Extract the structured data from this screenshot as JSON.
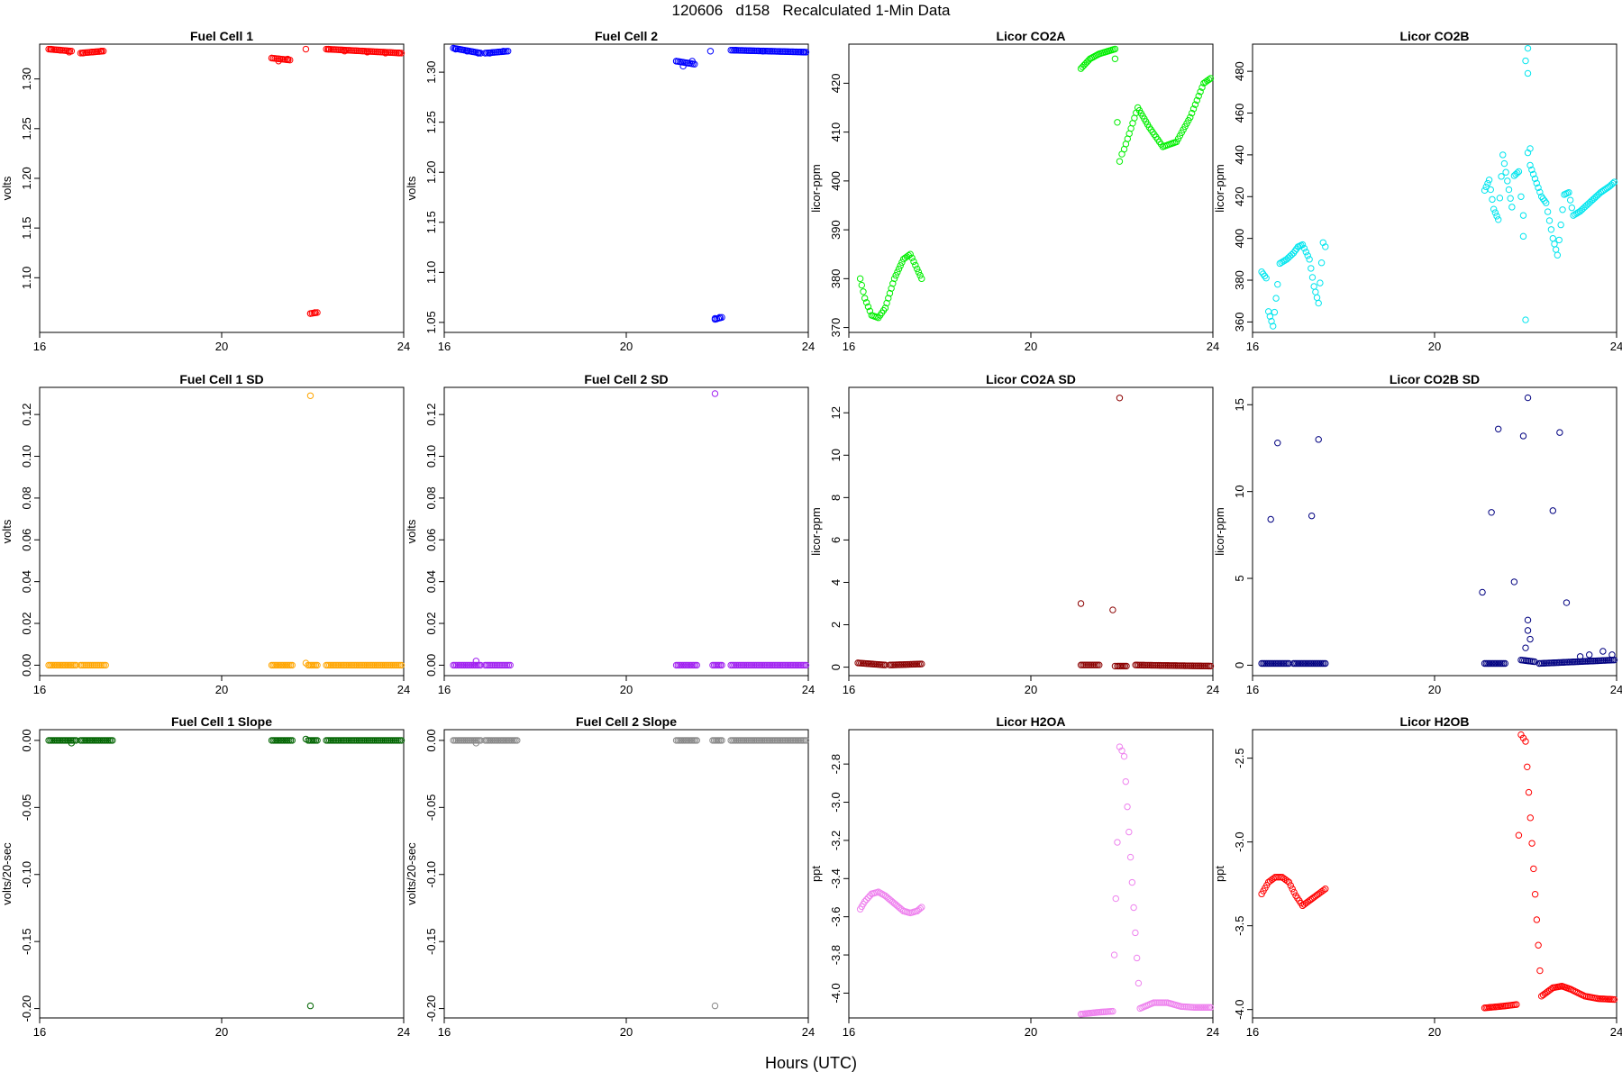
{
  "figure": {
    "title": "120606   d158   Recalculated 1-Min Data",
    "xlabel": "Hours (UTC)"
  },
  "chart_data": [
    {
      "type": "scatter",
      "title": "Fuel Cell 1",
      "ylabel": "volts",
      "color": "#ff0000",
      "xlim": [
        16,
        24
      ],
      "ylim": [
        1.045,
        1.335
      ],
      "xticks": [
        "16",
        "20",
        "24"
      ],
      "yticks": [
        1.1,
        1.15,
        1.2,
        1.25,
        1.3
      ],
      "yticklabels": [
        "1.10",
        "1.15",
        "1.20",
        "1.25",
        "1.30"
      ],
      "points": [
        [
          16.25,
          1.33
        ],
        [
          16.45,
          1.329
        ],
        [
          16.65,
          1.327
        ],
        [
          16.95,
          1.326
        ],
        [
          17.15,
          1.327
        ],
        [
          17.35,
          1.328
        ],
        [
          21.1,
          1.321
        ],
        [
          21.25,
          1.318
        ],
        [
          21.45,
          1.32
        ],
        [
          21.85,
          1.33
        ],
        [
          21.95,
          1.064
        ],
        [
          22.05,
          1.065
        ],
        [
          22.35,
          1.33
        ],
        [
          22.7,
          1.328
        ],
        [
          23.2,
          1.327
        ],
        [
          23.6,
          1.326
        ],
        [
          23.9,
          1.326
        ]
      ],
      "segments": [
        [
          16.2,
          16.7,
          1.33,
          1.328
        ],
        [
          16.9,
          17.4,
          1.326,
          1.328
        ],
        [
          21.1,
          21.5,
          1.321,
          1.319
        ],
        [
          21.95,
          22.1,
          1.064,
          1.065
        ],
        [
          22.3,
          23.95,
          1.33,
          1.326
        ]
      ]
    },
    {
      "type": "scatter",
      "title": "Fuel Cell 2",
      "ylabel": "volts",
      "color": "#0000ff",
      "xlim": [
        16,
        24
      ],
      "ylim": [
        1.04,
        1.328
      ],
      "xticks": [
        "16",
        "20",
        "24"
      ],
      "yticks": [
        1.05,
        1.1,
        1.15,
        1.2,
        1.25,
        1.3
      ],
      "yticklabels": [
        "1.05",
        "1.10",
        "1.15",
        "1.20",
        "1.25",
        "1.30"
      ],
      "points": [
        [
          16.25,
          1.323
        ],
        [
          16.5,
          1.321
        ],
        [
          16.75,
          1.319
        ],
        [
          17.0,
          1.319
        ],
        [
          17.3,
          1.321
        ],
        [
          21.1,
          1.311
        ],
        [
          21.25,
          1.306
        ],
        [
          21.45,
          1.311
        ],
        [
          21.85,
          1.321
        ],
        [
          21.95,
          1.054
        ],
        [
          22.05,
          1.055
        ],
        [
          22.4,
          1.322
        ],
        [
          23.0,
          1.321
        ],
        [
          23.9,
          1.32
        ]
      ],
      "segments": [
        [
          16.2,
          16.8,
          1.324,
          1.319
        ],
        [
          16.9,
          17.4,
          1.319,
          1.321
        ],
        [
          21.1,
          21.5,
          1.311,
          1.308
        ],
        [
          21.95,
          22.1,
          1.053,
          1.055
        ],
        [
          22.3,
          23.95,
          1.322,
          1.32
        ]
      ]
    },
    {
      "type": "scatter",
      "title": "Licor CO2A",
      "ylabel": "licor-ppm",
      "color": "#00ee00",
      "xlim": [
        16,
        24
      ],
      "ylim": [
        369,
        428
      ],
      "xticks": [
        "16",
        "20",
        "24"
      ],
      "yticks": [
        370,
        380,
        390,
        400,
        410,
        420
      ],
      "yticklabels": [
        "370",
        "380",
        "390",
        "400",
        "410",
        "420"
      ],
      "points": [
        [
          16.25,
          380
        ],
        [
          16.35,
          376
        ],
        [
          16.5,
          372.5
        ],
        [
          16.65,
          372
        ],
        [
          16.8,
          374
        ],
        [
          17.0,
          380
        ],
        [
          17.2,
          384
        ],
        [
          17.35,
          385
        ],
        [
          17.5,
          382
        ],
        [
          17.6,
          380
        ],
        [
          21.1,
          423
        ],
        [
          21.3,
          425
        ],
        [
          21.5,
          426
        ],
        [
          21.85,
          427
        ],
        [
          21.85,
          425
        ],
        [
          21.9,
          412
        ],
        [
          21.95,
          404
        ],
        [
          22.0,
          405.5
        ],
        [
          22.05,
          406.5
        ],
        [
          22.35,
          415
        ],
        [
          22.6,
          411
        ],
        [
          22.9,
          407
        ],
        [
          23.2,
          408
        ],
        [
          23.5,
          413
        ],
        [
          23.8,
          420
        ],
        [
          23.95,
          421
        ]
      ]
    },
    {
      "type": "scatter",
      "title": "Licor CO2B",
      "ylabel": "licor-ppm",
      "color": "#00e5ee",
      "xlim": [
        16,
        24
      ],
      "ylim": [
        355,
        493
      ],
      "xticks": [
        "16",
        "20",
        "24"
      ],
      "yticks": [
        360,
        380,
        400,
        420,
        440,
        460,
        480
      ],
      "yticklabels": [
        "360",
        "380",
        "400",
        "420",
        "440",
        "460",
        "480"
      ],
      "points": [
        [
          16.2,
          384
        ],
        [
          16.3,
          381
        ],
        [
          16.35,
          365
        ],
        [
          16.45,
          358
        ],
        [
          16.55,
          378
        ],
        [
          16.6,
          388
        ],
        [
          16.75,
          390
        ],
        [
          16.9,
          393
        ],
        [
          17.0,
          396
        ],
        [
          17.1,
          397
        ],
        [
          17.25,
          390
        ],
        [
          17.35,
          377
        ],
        [
          17.45,
          369
        ],
        [
          17.55,
          398
        ],
        [
          17.6,
          396
        ],
        [
          21.1,
          423
        ],
        [
          21.2,
          428
        ],
        [
          21.3,
          414
        ],
        [
          21.4,
          409
        ],
        [
          21.5,
          440
        ],
        [
          21.7,
          415
        ],
        [
          21.75,
          430
        ],
        [
          21.85,
          432
        ],
        [
          21.9,
          420
        ],
        [
          21.95,
          411
        ],
        [
          21.95,
          401
        ],
        [
          22.0,
          361
        ],
        [
          22.0,
          485
        ],
        [
          22.05,
          479
        ],
        [
          22.05,
          441
        ],
        [
          22.1,
          443
        ],
        [
          22.05,
          491
        ],
        [
          22.1,
          435
        ],
        [
          22.35,
          420
        ],
        [
          22.45,
          417
        ],
        [
          22.6,
          400
        ],
        [
          22.7,
          392
        ],
        [
          22.85,
          421
        ],
        [
          22.95,
          422
        ],
        [
          23.05,
          411
        ],
        [
          23.2,
          413
        ],
        [
          23.45,
          418
        ],
        [
          23.65,
          422
        ],
        [
          23.85,
          425
        ],
        [
          23.95,
          427
        ]
      ]
    },
    {
      "type": "scatter",
      "title": "Fuel Cell 1 SD",
      "ylabel": "volts",
      "color": "#ffa500",
      "xlim": [
        16,
        24
      ],
      "ylim": [
        -0.005,
        0.133
      ],
      "xticks": [
        "16",
        "20",
        "24"
      ],
      "yticks": [
        0.0,
        0.02,
        0.04,
        0.06,
        0.08,
        0.1,
        0.12
      ],
      "yticklabels": [
        "0.00",
        "0.02",
        "0.04",
        "0.06",
        "0.08",
        "0.10",
        "0.12"
      ],
      "points": [
        [
          21.95,
          0.129
        ],
        [
          21.85,
          0.001
        ]
      ],
      "segments": [
        [
          16.2,
          16.8,
          0.0,
          0.0
        ],
        [
          16.9,
          17.45,
          0.0,
          0.0
        ],
        [
          21.1,
          21.55,
          0.0,
          0.0
        ],
        [
          21.9,
          22.1,
          0.0,
          0.0
        ],
        [
          22.3,
          23.95,
          0.0,
          0.0
        ]
      ]
    },
    {
      "type": "scatter",
      "title": "Fuel Cell 2 SD",
      "ylabel": "volts",
      "color": "#a020f0",
      "xlim": [
        16,
        24
      ],
      "ylim": [
        -0.005,
        0.133
      ],
      "xticks": [
        "16",
        "20",
        "24"
      ],
      "yticks": [
        0.0,
        0.02,
        0.04,
        0.06,
        0.08,
        0.1,
        0.12
      ],
      "yticklabels": [
        "0.00",
        "0.02",
        "0.04",
        "0.06",
        "0.08",
        "0.10",
        "0.12"
      ],
      "points": [
        [
          21.95,
          0.13
        ],
        [
          16.7,
          0.002
        ]
      ],
      "segments": [
        [
          16.2,
          16.8,
          0.0,
          0.0
        ],
        [
          16.9,
          17.45,
          0.0,
          0.0
        ],
        [
          21.1,
          21.55,
          0.0,
          0.0
        ],
        [
          21.9,
          22.1,
          0.0,
          0.0
        ],
        [
          22.3,
          23.95,
          0.0,
          0.0
        ]
      ]
    },
    {
      "type": "scatter",
      "title": "Licor CO2A SD",
      "ylabel": "licor-ppm",
      "color": "#8b0000",
      "xlim": [
        16,
        24
      ],
      "ylim": [
        -0.4,
        13.2
      ],
      "xticks": [
        "16",
        "20",
        "24"
      ],
      "yticks": [
        0,
        2,
        4,
        6,
        8,
        10,
        12
      ],
      "yticklabels": [
        "0",
        "2",
        "4",
        "6",
        "8",
        "10",
        "12"
      ],
      "points": [
        [
          21.1,
          3.0
        ],
        [
          21.8,
          2.7
        ],
        [
          21.95,
          12.7
        ],
        [
          21.85,
          0.05
        ]
      ],
      "segments": [
        [
          16.2,
          16.8,
          0.2,
          0.1
        ],
        [
          16.9,
          17.6,
          0.1,
          0.15
        ],
        [
          21.1,
          21.5,
          0.1,
          0.1
        ],
        [
          21.9,
          22.1,
          0.05,
          0.05
        ],
        [
          22.3,
          23.95,
          0.1,
          0.05
        ]
      ]
    },
    {
      "type": "scatter",
      "title": "Licor CO2B SD",
      "ylabel": "licor-ppm",
      "color": "#000080",
      "xlim": [
        16,
        24
      ],
      "ylim": [
        -0.6,
        16.0
      ],
      "xticks": [
        "16",
        "20",
        "24"
      ],
      "yticks": [
        0,
        5,
        10,
        15
      ],
      "yticklabels": [
        "0",
        "5",
        "10",
        "15"
      ],
      "points": [
        [
          16.4,
          8.4
        ],
        [
          16.55,
          12.8
        ],
        [
          17.3,
          8.6
        ],
        [
          17.45,
          13.0
        ],
        [
          21.05,
          4.2
        ],
        [
          21.25,
          8.8
        ],
        [
          21.4,
          13.6
        ],
        [
          21.75,
          4.8
        ],
        [
          21.95,
          13.2
        ],
        [
          22.05,
          15.4
        ],
        [
          22.0,
          1.0
        ],
        [
          22.05,
          2.0
        ],
        [
          22.05,
          2.6
        ],
        [
          22.1,
          1.5
        ],
        [
          22.6,
          8.9
        ],
        [
          22.75,
          13.4
        ],
        [
          22.9,
          3.6
        ],
        [
          23.2,
          0.5
        ],
        [
          23.4,
          0.6
        ],
        [
          23.7,
          0.8
        ],
        [
          23.9,
          0.6
        ]
      ],
      "segments": [
        [
          16.2,
          16.8,
          0.1,
          0.1
        ],
        [
          16.9,
          17.6,
          0.1,
          0.1
        ],
        [
          21.1,
          21.55,
          0.1,
          0.1
        ],
        [
          21.9,
          22.2,
          0.3,
          0.2
        ],
        [
          22.3,
          23.95,
          0.1,
          0.3
        ]
      ]
    },
    {
      "type": "scatter",
      "title": "Fuel Cell 1 Slope",
      "ylabel": "volts/20-sec",
      "color": "#006400",
      "xlim": [
        16,
        24
      ],
      "ylim": [
        -0.207,
        0.008
      ],
      "xticks": [
        "16",
        "20",
        "24"
      ],
      "yticks": [
        -0.2,
        -0.15,
        -0.1,
        -0.05,
        0.0
      ],
      "yticklabels": [
        "-0.20",
        "-0.15",
        "-0.10",
        "-0.05",
        "0.00"
      ],
      "points": [
        [
          21.95,
          -0.198
        ],
        [
          16.7,
          -0.002
        ],
        [
          21.85,
          0.001
        ]
      ],
      "segments": [
        [
          16.2,
          16.8,
          0.0,
          0.0
        ],
        [
          16.9,
          17.6,
          0.0,
          0.0
        ],
        [
          21.1,
          21.55,
          0.0,
          0.0
        ],
        [
          21.9,
          22.1,
          0.0,
          0.0
        ],
        [
          22.3,
          23.95,
          0.0,
          0.0
        ]
      ]
    },
    {
      "type": "scatter",
      "title": "Fuel Cell 2 Slope",
      "ylabel": "volts/20-sec",
      "color": "#888888",
      "xlim": [
        16,
        24
      ],
      "ylim": [
        -0.207,
        0.008
      ],
      "xticks": [
        "16",
        "20",
        "24"
      ],
      "yticks": [
        -0.2,
        -0.15,
        -0.1,
        -0.05,
        0.0
      ],
      "yticklabels": [
        "-0.20",
        "-0.15",
        "-0.10",
        "-0.05",
        "0.00"
      ],
      "points": [
        [
          21.95,
          -0.198
        ],
        [
          16.7,
          -0.002
        ]
      ],
      "segments": [
        [
          16.2,
          16.8,
          0.0,
          0.0
        ],
        [
          16.9,
          17.6,
          0.0,
          0.0
        ],
        [
          21.1,
          21.55,
          0.0,
          0.0
        ],
        [
          21.9,
          22.1,
          0.0,
          0.0
        ],
        [
          22.3,
          23.95,
          0.0,
          0.0
        ]
      ]
    },
    {
      "type": "scatter",
      "title": "Licor H2OA",
      "ylabel": "ppt",
      "color": "#ee82ee",
      "xlim": [
        16,
        24
      ],
      "ylim": [
        -4.13,
        -2.62
      ],
      "xticks": [
        "16",
        "20",
        "24"
      ],
      "yticks": [
        -4.0,
        -3.8,
        -3.6,
        -3.4,
        -3.2,
        -3.0,
        -2.8
      ],
      "yticklabels": [
        "-4.0",
        "-3.8",
        "-3.6",
        "-3.4",
        "-3.2",
        "-3.0",
        "-2.8"
      ],
      "points": [
        [
          16.25,
          -3.56
        ],
        [
          16.35,
          -3.52
        ],
        [
          16.5,
          -3.48
        ],
        [
          16.65,
          -3.47
        ],
        [
          16.8,
          -3.49
        ],
        [
          17.0,
          -3.53
        ],
        [
          17.2,
          -3.57
        ],
        [
          17.35,
          -3.58
        ],
        [
          17.5,
          -3.57
        ],
        [
          17.6,
          -3.55
        ],
        [
          21.1,
          -4.11
        ],
        [
          21.3,
          -4.105
        ],
        [
          21.5,
          -4.1
        ],
        [
          21.8,
          -4.095
        ],
        [
          21.9,
          -3.21
        ],
        [
          21.95,
          -2.71
        ],
        [
          22.0,
          -2.73
        ],
        [
          22.05,
          -2.76
        ],
        [
          22.4,
          -4.08
        ],
        [
          22.7,
          -4.05
        ],
        [
          23.0,
          -4.05
        ],
        [
          23.3,
          -4.07
        ],
        [
          23.6,
          -4.075
        ],
        [
          23.95,
          -4.075
        ]
      ]
    },
    {
      "type": "scatter",
      "title": "Licor H2OB",
      "ylabel": "ppt",
      "color": "#ff0000",
      "xlim": [
        16,
        24
      ],
      "ylim": [
        -4.05,
        -2.33
      ],
      "xticks": [
        "16",
        "20",
        "24"
      ],
      "yticks": [
        -4.0,
        -3.5,
        -3.0,
        -2.5
      ],
      "yticklabels": [
        "-4.0",
        "-3.5",
        "-3.0",
        "-2.5"
      ],
      "points": [
        [
          16.2,
          -3.31
        ],
        [
          16.35,
          -3.24
        ],
        [
          16.5,
          -3.21
        ],
        [
          16.65,
          -3.21
        ],
        [
          16.8,
          -3.24
        ],
        [
          16.95,
          -3.32
        ],
        [
          17.1,
          -3.38
        ],
        [
          17.25,
          -3.35
        ],
        [
          17.45,
          -3.31
        ],
        [
          17.6,
          -3.28
        ],
        [
          21.1,
          -3.99
        ],
        [
          21.3,
          -3.985
        ],
        [
          21.5,
          -3.98
        ],
        [
          21.8,
          -3.97
        ],
        [
          21.85,
          -2.96
        ],
        [
          21.9,
          -2.36
        ],
        [
          21.95,
          -2.38
        ],
        [
          22.0,
          -2.4
        ],
        [
          22.35,
          -3.92
        ],
        [
          22.6,
          -3.87
        ],
        [
          22.8,
          -3.86
        ],
        [
          23.0,
          -3.88
        ],
        [
          23.3,
          -3.92
        ],
        [
          23.6,
          -3.935
        ],
        [
          23.95,
          -3.94
        ]
      ]
    }
  ]
}
